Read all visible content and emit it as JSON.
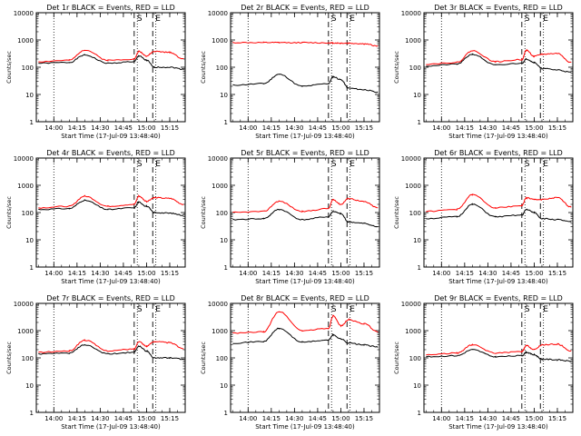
{
  "window": {
    "title": ""
  },
  "chart_data": [
    {
      "type": "line",
      "title": "Det 1r BLACK = Events, RED = LLD",
      "xlabel": "Start Time (17-Jul-09 13:48:40)",
      "ylabel": "Counts/sec",
      "xticks": [
        "14:00",
        "14:15",
        "14:30",
        "14:45",
        "15:00",
        "15:15"
      ],
      "yticks": [
        "1",
        "10",
        "100",
        "1000",
        "10000"
      ],
      "ylim": [
        1,
        10000
      ],
      "yscale": "log",
      "xlim": [
        "13:48:40",
        "15:25"
      ],
      "markers": [
        "S",
        "E"
      ],
      "x": [
        "13:50",
        "14:10",
        "14:20",
        "14:35",
        "14:52",
        "14:55",
        "15:00",
        "15:05",
        "15:15",
        "15:24"
      ],
      "series": [
        {
          "name": "Events",
          "color": "#000000",
          "values": [
            140,
            150,
            280,
            140,
            160,
            260,
            180,
            100,
            100,
            85
          ]
        },
        {
          "name": "LLD",
          "color": "#ff0000",
          "values": [
            160,
            180,
            430,
            180,
            200,
            380,
            260,
            380,
            350,
            200
          ]
        }
      ]
    },
    {
      "type": "line",
      "title": "Det 2r BLACK = Events, RED = LLD",
      "xlabel": "Start Time (17-Jul-09 13:48:40)",
      "ylabel": "Counts/sec",
      "xticks": [
        "14:00",
        "14:15",
        "14:30",
        "14:45",
        "15:00",
        "15:15"
      ],
      "yticks": [
        "1",
        "10",
        "100",
        "1000",
        "10000"
      ],
      "ylim": [
        1,
        10000
      ],
      "yscale": "log",
      "markers": [
        "S",
        "E"
      ],
      "x": [
        "13:50",
        "14:10",
        "14:20",
        "14:35",
        "14:52",
        "14:55",
        "15:00",
        "15:05",
        "15:15",
        "15:24"
      ],
      "series": [
        {
          "name": "Events",
          "color": "#000000",
          "values": [
            22,
            25,
            55,
            20,
            25,
            45,
            35,
            17,
            15,
            12
          ]
        },
        {
          "name": "LLD",
          "color": "#ff0000",
          "values": [
            800,
            800,
            800,
            800,
            780,
            780,
            760,
            760,
            720,
            600
          ]
        }
      ]
    },
    {
      "type": "line",
      "title": "Det 3r BLACK = Events, RED = LLD",
      "xlabel": "Start Time (17-Jul-09 13:48:40)",
      "ylabel": "Counts/sec",
      "xticks": [
        "14:00",
        "14:15",
        "14:30",
        "14:45",
        "15:00",
        "15:15"
      ],
      "yticks": [
        "1",
        "10",
        "100",
        "1000",
        "10000"
      ],
      "ylim": [
        1,
        10000
      ],
      "yscale": "log",
      "markers": [
        "S",
        "E"
      ],
      "x": [
        "13:50",
        "14:10",
        "14:20",
        "14:35",
        "14:52",
        "14:55",
        "15:00",
        "15:05",
        "15:15",
        "15:24"
      ],
      "series": [
        {
          "name": "Events",
          "color": "#000000",
          "values": [
            110,
            130,
            300,
            120,
            140,
            200,
            150,
            90,
            80,
            65
          ]
        },
        {
          "name": "LLD",
          "color": "#ff0000",
          "values": [
            130,
            150,
            400,
            160,
            190,
            420,
            250,
            300,
            320,
            150
          ]
        }
      ]
    },
    {
      "type": "line",
      "title": "Det 4r BLACK = Events, RED = LLD",
      "xlabel": "Start Time (17-Jul-09 13:48:40)",
      "ylabel": "Counts/sec",
      "xticks": [
        "14:00",
        "14:15",
        "14:30",
        "14:45",
        "15:00",
        "15:15"
      ],
      "yticks": [
        "1",
        "10",
        "100",
        "1000",
        "10000"
      ],
      "ylim": [
        1,
        10000
      ],
      "yscale": "log",
      "markers": [
        "S",
        "E"
      ],
      "x": [
        "13:50",
        "14:10",
        "14:20",
        "14:35",
        "14:52",
        "14:55",
        "15:00",
        "15:05",
        "15:15",
        "15:24"
      ],
      "series": [
        {
          "name": "Events",
          "color": "#000000",
          "values": [
            130,
            140,
            280,
            130,
            150,
            240,
            170,
            100,
            95,
            80
          ]
        },
        {
          "name": "LLD",
          "color": "#ff0000",
          "values": [
            150,
            170,
            400,
            170,
            200,
            400,
            260,
            350,
            330,
            200
          ]
        }
      ]
    },
    {
      "type": "line",
      "title": "Det 5r BLACK = Events, RED = LLD",
      "xlabel": "Start Time (17-Jul-09 13:48:40)",
      "ylabel": "Counts/sec",
      "xticks": [
        "14:00",
        "14:15",
        "14:30",
        "14:45",
        "15:00",
        "15:15"
      ],
      "yticks": [
        "1",
        "10",
        "100",
        "1000",
        "10000"
      ],
      "ylim": [
        1,
        10000
      ],
      "yscale": "log",
      "markers": [
        "S",
        "E"
      ],
      "x": [
        "13:50",
        "14:10",
        "14:20",
        "14:35",
        "14:52",
        "14:55",
        "15:00",
        "15:05",
        "15:15",
        "15:24"
      ],
      "series": [
        {
          "name": "Events",
          "color": "#000000",
          "values": [
            55,
            60,
            130,
            55,
            70,
            110,
            90,
            45,
            40,
            30
          ]
        },
        {
          "name": "LLD",
          "color": "#ff0000",
          "values": [
            100,
            110,
            260,
            110,
            140,
            300,
            200,
            330,
            250,
            150
          ]
        }
      ]
    },
    {
      "type": "line",
      "title": "Det 6r BLACK = Events, RED = LLD",
      "xlabel": "Start Time (17-Jul-09 13:48:40)",
      "ylabel": "Counts/sec",
      "xticks": [
        "14:00",
        "14:15",
        "14:30",
        "14:45",
        "15:00",
        "15:15"
      ],
      "yticks": [
        "1",
        "10",
        "100",
        "1000",
        "10000"
      ],
      "ylim": [
        1,
        10000
      ],
      "yscale": "log",
      "markers": [
        "S",
        "E"
      ],
      "x": [
        "13:50",
        "14:10",
        "14:20",
        "14:35",
        "14:52",
        "14:55",
        "15:00",
        "15:05",
        "15:15",
        "15:24"
      ],
      "series": [
        {
          "name": "Events",
          "color": "#000000",
          "values": [
            60,
            70,
            200,
            70,
            80,
            130,
            100,
            60,
            55,
            45
          ]
        },
        {
          "name": "LLD",
          "color": "#ff0000",
          "values": [
            110,
            130,
            450,
            150,
            180,
            350,
            300,
            300,
            350,
            160
          ]
        }
      ]
    },
    {
      "type": "line",
      "title": "Det 7r BLACK = Events, RED = LLD",
      "xlabel": "Start Time (17-Jul-09 13:48:40)",
      "ylabel": "Counts/sec",
      "xticks": [
        "14:00",
        "14:15",
        "14:30",
        "14:45",
        "15:00",
        "15:15"
      ],
      "yticks": [
        "1",
        "10",
        "100",
        "1000",
        "10000"
      ],
      "ylim": [
        1,
        10000
      ],
      "yscale": "log",
      "markers": [
        "S",
        "E"
      ],
      "x": [
        "13:50",
        "14:10",
        "14:20",
        "14:35",
        "14:52",
        "14:55",
        "15:00",
        "15:05",
        "15:15",
        "15:24"
      ],
      "series": [
        {
          "name": "Events",
          "color": "#000000",
          "values": [
            140,
            150,
            300,
            140,
            160,
            270,
            180,
            100,
            100,
            90
          ]
        },
        {
          "name": "LLD",
          "color": "#ff0000",
          "values": [
            160,
            180,
            450,
            180,
            210,
            400,
            270,
            400,
            360,
            220
          ]
        }
      ]
    },
    {
      "type": "line",
      "title": "Det 8r BLACK = Events, RED = LLD",
      "xlabel": "Start Time (17-Jul-09 13:48:40)",
      "ylabel": "Counts/sec",
      "xticks": [
        "14:00",
        "14:15",
        "14:30",
        "14:45",
        "15:00",
        "15:15"
      ],
      "yticks": [
        "1",
        "10",
        "100",
        "1000",
        "10000"
      ],
      "ylim": [
        1,
        10000
      ],
      "yscale": "log",
      "markers": [
        "S",
        "E"
      ],
      "x": [
        "13:50",
        "14:10",
        "14:20",
        "14:35",
        "14:52",
        "14:55",
        "15:00",
        "15:05",
        "15:15",
        "15:24"
      ],
      "series": [
        {
          "name": "Events",
          "color": "#000000",
          "values": [
            350,
            400,
            1200,
            380,
            450,
            700,
            500,
            350,
            300,
            250
          ]
        },
        {
          "name": "LLD",
          "color": "#ff0000",
          "values": [
            800,
            900,
            5000,
            1000,
            1200,
            3500,
            1500,
            2500,
            1800,
            900
          ]
        }
      ]
    },
    {
      "type": "line",
      "title": "Det 9r BLACK = Events, RED = LLD",
      "xlabel": "Start Time (17-Jul-09 13:48:40)",
      "ylabel": "Counts/sec",
      "xticks": [
        "14:00",
        "14:15",
        "14:30",
        "14:45",
        "15:00",
        "15:15"
      ],
      "yticks": [
        "1",
        "10",
        "100",
        "1000",
        "10000"
      ],
      "ylim": [
        1,
        10000
      ],
      "yscale": "log",
      "markers": [
        "S",
        "E"
      ],
      "x": [
        "13:50",
        "14:10",
        "14:20",
        "14:35",
        "14:52",
        "14:55",
        "15:00",
        "15:05",
        "15:15",
        "15:24"
      ],
      "series": [
        {
          "name": "Events",
          "color": "#000000",
          "values": [
            110,
            120,
            200,
            110,
            120,
            160,
            130,
            90,
            85,
            75
          ]
        },
        {
          "name": "LLD",
          "color": "#ff0000",
          "values": [
            130,
            150,
            300,
            150,
            170,
            280,
            200,
            300,
            320,
            180
          ]
        }
      ]
    }
  ]
}
